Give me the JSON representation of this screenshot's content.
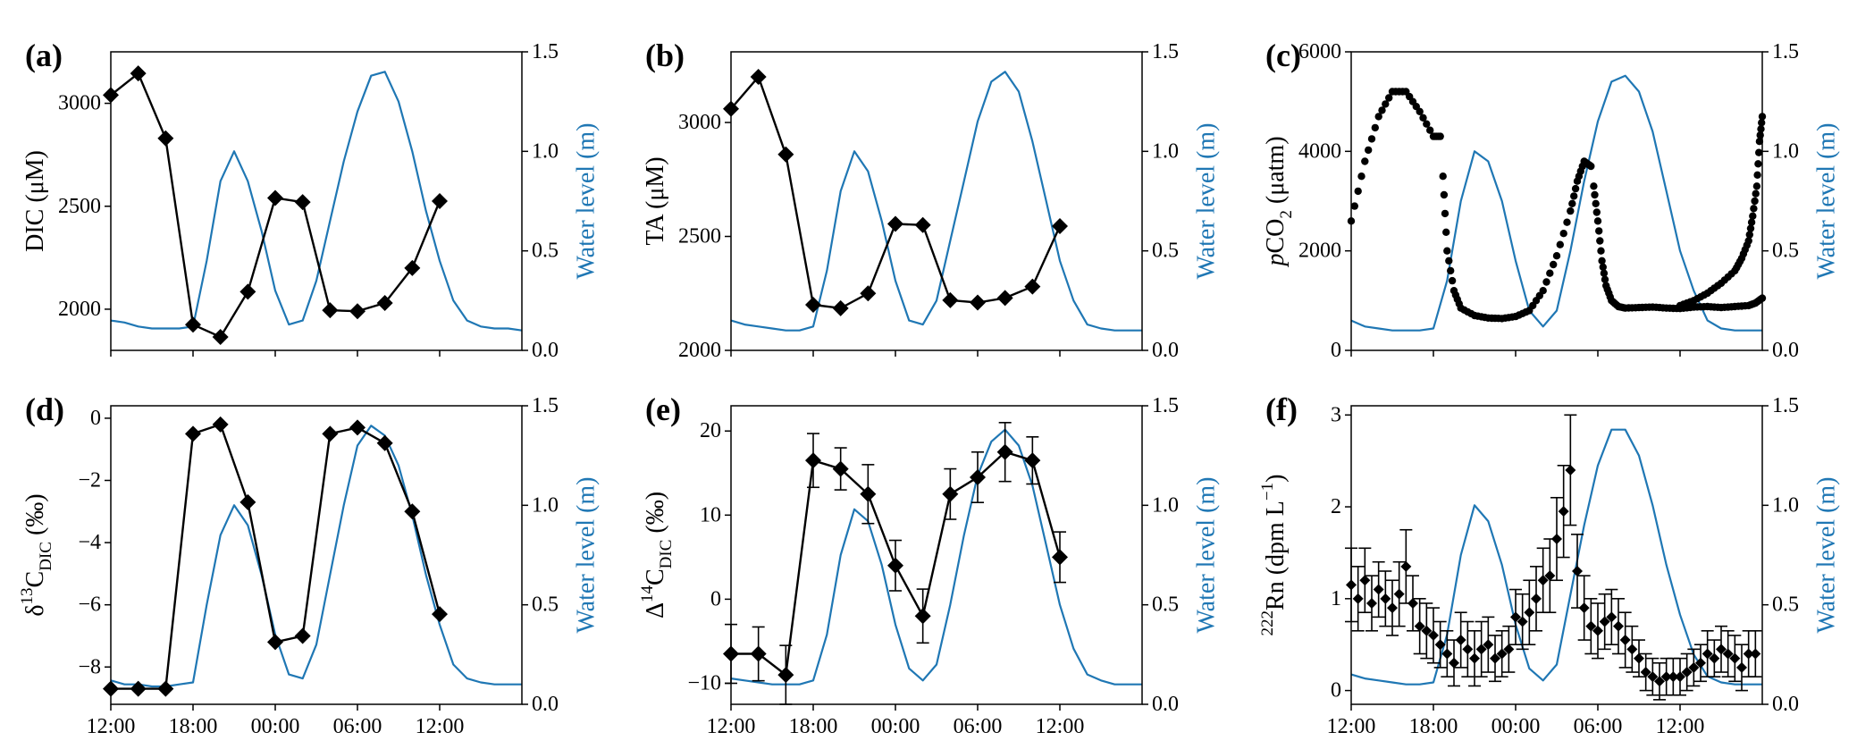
{
  "figure": {
    "water_level_label": "Water level (m)",
    "water_color": "#1f77b4",
    "data_color": "#000000"
  },
  "chart_data": [
    {
      "type": "line",
      "panel_label": "(a)",
      "ylabel": "DIC (μM)",
      "ylabel_parts": [
        {
          "t": "DIC (μM)"
        }
      ],
      "xlabel": "",
      "ylim": [
        1800,
        3250
      ],
      "yticks": [
        2000,
        2500,
        3000
      ],
      "y2label": "Water level (m)",
      "y2lim": [
        0,
        1.5
      ],
      "y2ticks": [
        "0.0",
        "0.5",
        "1.0",
        "1.5"
      ],
      "xlim": [
        0,
        30
      ],
      "xticks": [
        0,
        6,
        12,
        18,
        24
      ],
      "xtick_labels": [],
      "marker": "D",
      "series": [
        {
          "name": "DIC",
          "x": [
            0,
            2,
            4,
            6,
            8,
            10,
            12,
            14,
            16,
            18,
            20,
            22,
            24,
            26
          ],
          "values": [
            3040,
            3145,
            2830,
            1925,
            1865,
            2085,
            2540,
            2520,
            1995,
            1990,
            2030,
            2200,
            2525,
            null
          ]
        }
      ]
    },
    {
      "type": "line",
      "panel_label": "(b)",
      "ylabel": "TA (μM)",
      "ylabel_parts": [
        {
          "t": "TA (μM)"
        }
      ],
      "xlabel": "",
      "ylim": [
        2000,
        3310
      ],
      "yticks": [
        2000,
        2500,
        3000
      ],
      "y2label": "Water level (m)",
      "y2lim": [
        0,
        1.5
      ],
      "y2ticks": [
        "0.0",
        "0.5",
        "1.0",
        "1.5"
      ],
      "xlim": [
        0,
        30
      ],
      "xticks": [
        0,
        6,
        12,
        18,
        24
      ],
      "xtick_labels": [],
      "marker": "D",
      "series": [
        {
          "name": "TA",
          "x": [
            0,
            2,
            4,
            6,
            8,
            10,
            12,
            14,
            16,
            18,
            20,
            22,
            24
          ],
          "values": [
            3060,
            3200,
            2860,
            2200,
            2185,
            2250,
            2555,
            2550,
            2220,
            2210,
            2230,
            2280,
            2545
          ]
        }
      ]
    },
    {
      "type": "scatter",
      "panel_label": "(c)",
      "ylabel": "pCO2 (μatm)",
      "ylabel_parts": [
        {
          "t": "p",
          "i": true
        },
        {
          "t": "CO"
        },
        {
          "t": "2",
          "sub": true
        },
        {
          "t": " (μatm)"
        }
      ],
      "xlabel": "",
      "ylim": [
        0,
        6000
      ],
      "yticks": [
        0,
        2000,
        4000,
        6000
      ],
      "y2label": "Water level (m)",
      "y2lim": [
        0,
        1.5
      ],
      "y2ticks": [
        "0.0",
        "0.5",
        "1.0",
        "1.5"
      ],
      "xlim": [
        0,
        30
      ],
      "xticks": [
        0,
        6,
        12,
        18,
        24
      ],
      "xtick_labels": [],
      "marker": "o",
      "pco2_segments": [
        {
          "x": [
            0,
            1,
            2,
            3,
            4,
            5,
            6,
            6.5
          ],
          "values": [
            2600,
            3800,
            4700,
            5200,
            5200,
            4800,
            4300,
            4300
          ]
        },
        {
          "x": [
            6.7,
            7,
            7.5,
            8,
            9,
            10,
            11,
            12,
            13,
            14,
            15,
            16,
            16.5,
            17,
            17.5
          ],
          "values": [
            3500,
            2000,
            1200,
            850,
            700,
            650,
            640,
            680,
            800,
            1200,
            1900,
            2800,
            3400,
            3800,
            3700
          ]
        },
        {
          "x": [
            17.7,
            18,
            18.3,
            18.6,
            19,
            19.5,
            20,
            21,
            22,
            23,
            24,
            25,
            26,
            27,
            28,
            29,
            29.5,
            30
          ],
          "values": [
            3300,
            2600,
            1800,
            1300,
            1000,
            880,
            850,
            860,
            870,
            850,
            840,
            870,
            880,
            860,
            880,
            900,
            950,
            1050
          ]
        }
      ],
      "pco2_tail": {
        "x": [
          24,
          25,
          26,
          27,
          28,
          28.5,
          29,
          29.3,
          29.6,
          29.8,
          30
        ],
        "values": [
          900,
          1000,
          1150,
          1350,
          1600,
          1850,
          2200,
          2700,
          3300,
          4200,
          4700
        ]
      }
    },
    {
      "type": "line",
      "panel_label": "(d)",
      "ylabel": "δ13C_DIC (‰)",
      "ylabel_parts": [
        {
          "t": "δ"
        },
        {
          "t": "13",
          "sup": true
        },
        {
          "t": "C"
        },
        {
          "t": "DIC",
          "sub": true
        },
        {
          "t": " (‰)"
        }
      ],
      "xlabel": "",
      "ylim": [
        -9.2,
        0.4
      ],
      "yticks": [
        -8,
        -6,
        -4,
        -2,
        0
      ],
      "y2label": "Water level (m)",
      "y2lim": [
        0,
        1.5
      ],
      "y2ticks": [
        "0.0",
        "0.5",
        "1.0",
        "1.5"
      ],
      "xlim": [
        0,
        30
      ],
      "xticks": [
        0,
        6,
        12,
        18,
        24
      ],
      "xtick_labels": [
        "12:00",
        "18:00",
        "00:00",
        "06:00",
        "12:00"
      ],
      "marker": "D",
      "series": [
        {
          "name": "d13C",
          "x": [
            0,
            2,
            4,
            6,
            8,
            10,
            12,
            14,
            16,
            18,
            20,
            22,
            24
          ],
          "values": [
            -8.7,
            -8.7,
            -8.7,
            -0.5,
            -0.2,
            -2.7,
            -7.2,
            -7.0,
            -0.5,
            -0.3,
            -0.8,
            -3.0,
            -6.3
          ]
        }
      ]
    },
    {
      "type": "line",
      "panel_label": "(e)",
      "ylabel": "Δ14C_DIC (‰)",
      "ylabel_parts": [
        {
          "t": "Δ"
        },
        {
          "t": "14",
          "sup": true
        },
        {
          "t": "C"
        },
        {
          "t": "DIC",
          "sub": true
        },
        {
          "t": " (‰)"
        }
      ],
      "xlabel": "",
      "ylim": [
        -12.5,
        23
      ],
      "yticks": [
        -10,
        0,
        10,
        20
      ],
      "y2label": "Water level (m)",
      "y2lim": [
        0,
        1.5
      ],
      "y2ticks": [
        "0.0",
        "0.5",
        "1.0",
        "1.5"
      ],
      "xlim": [
        0,
        30
      ],
      "xticks": [
        0,
        6,
        12,
        18,
        24
      ],
      "xtick_labels": [
        "12:00",
        "18:00",
        "00:00",
        "06:00",
        "12:00"
      ],
      "marker": "D",
      "series": [
        {
          "name": "D14C",
          "x": [
            0,
            2,
            4,
            6,
            8,
            10,
            12,
            14,
            16,
            18,
            20,
            22,
            24
          ],
          "values": [
            -6.5,
            -6.5,
            -9.0,
            16.5,
            15.5,
            12.5,
            4.0,
            -2.0,
            12.5,
            14.5,
            17.5,
            16.5,
            5.0
          ],
          "errors": [
            3.5,
            3.2,
            3.5,
            3.2,
            2.5,
            3.5,
            3.0,
            3.2,
            3.0,
            3.0,
            3.5,
            2.8,
            3.0
          ]
        }
      ]
    },
    {
      "type": "scatter",
      "panel_label": "(f)",
      "ylabel": "222Rn (dpm L−1)",
      "ylabel_parts": [
        {
          "t": "222",
          "sup": true
        },
        {
          "t": "Rn (dpm L"
        },
        {
          "t": "−1",
          "sup": true
        },
        {
          "t": ")"
        }
      ],
      "xlabel": "",
      "ylim": [
        -0.15,
        3.1
      ],
      "yticks": [
        0,
        1,
        2,
        3
      ],
      "y2label": "Water level (m)",
      "y2lim": [
        0,
        1.5
      ],
      "y2ticks": [
        "0.0",
        "0.5",
        "1.0",
        "1.5"
      ],
      "xlim": [
        0,
        30
      ],
      "xticks": [
        0,
        6,
        12,
        18,
        24
      ],
      "xtick_labels": [
        "12:00",
        "18:00",
        "00:00",
        "06:00",
        "12:00"
      ],
      "marker": "D",
      "series": [
        {
          "name": "Rn",
          "x": [
            0,
            0.5,
            1,
            1.5,
            2,
            2.5,
            3,
            3.5,
            4,
            4.5,
            5,
            5.5,
            6,
            6.5,
            7,
            7.5,
            8,
            8.5,
            9,
            9.5,
            10,
            10.5,
            11,
            11.5,
            12,
            12.5,
            13,
            13.5,
            14,
            14.5,
            15,
            15.5,
            16,
            16.5,
            17,
            17.5,
            18,
            18.5,
            19,
            19.5,
            20,
            20.5,
            21,
            21.5,
            22,
            22.5,
            23,
            23.5,
            24,
            24.5,
            25,
            25.5,
            26,
            26.5,
            27,
            27.5,
            28,
            28.5,
            29,
            29.5
          ],
          "values": [
            1.15,
            1.0,
            1.2,
            0.95,
            1.1,
            1.0,
            0.9,
            1.05,
            1.35,
            0.95,
            0.7,
            0.65,
            0.6,
            0.5,
            0.4,
            0.3,
            0.55,
            0.45,
            0.35,
            0.45,
            0.5,
            0.35,
            0.4,
            0.45,
            0.8,
            0.75,
            0.85,
            1.0,
            1.2,
            1.25,
            1.65,
            1.95,
            2.4,
            1.3,
            0.9,
            0.7,
            0.65,
            0.75,
            0.8,
            0.7,
            0.55,
            0.45,
            0.35,
            0.2,
            0.15,
            0.1,
            0.15,
            0.15,
            0.15,
            0.2,
            0.25,
            0.3,
            0.4,
            0.35,
            0.45,
            0.4,
            0.35,
            0.25,
            0.4,
            0.4
          ],
          "errors": [
            0.4,
            0.35,
            0.35,
            0.3,
            0.3,
            0.3,
            0.3,
            0.35,
            0.4,
            0.3,
            0.3,
            0.3,
            0.3,
            0.25,
            0.25,
            0.25,
            0.3,
            0.3,
            0.3,
            0.3,
            0.3,
            0.25,
            0.25,
            0.25,
            0.3,
            0.3,
            0.35,
            0.35,
            0.35,
            0.4,
            0.45,
            0.5,
            0.6,
            0.4,
            0.35,
            0.3,
            0.3,
            0.3,
            0.3,
            0.3,
            0.3,
            0.25,
            0.2,
            0.2,
            0.2,
            0.2,
            0.2,
            0.2,
            0.2,
            0.2,
            0.2,
            0.2,
            0.25,
            0.2,
            0.25,
            0.25,
            0.25,
            0.25,
            0.25,
            0.25
          ]
        }
      ]
    }
  ],
  "water_level": {
    "x": [
      0,
      1,
      2,
      3,
      4,
      5,
      6,
      7,
      8,
      9,
      10,
      11,
      12,
      13,
      14,
      15,
      16,
      17,
      18,
      19,
      20,
      21,
      22,
      23,
      24,
      25,
      26,
      27,
      28,
      29,
      30
    ],
    "a": [
      0.15,
      0.14,
      0.12,
      0.11,
      0.11,
      0.11,
      0.12,
      0.45,
      0.85,
      1.0,
      0.85,
      0.6,
      0.3,
      0.13,
      0.15,
      0.35,
      0.65,
      0.95,
      1.2,
      1.38,
      1.4,
      1.25,
      1.0,
      0.7,
      0.45,
      0.25,
      0.15,
      0.12,
      0.11,
      0.11,
      0.1
    ],
    "b": [
      0.15,
      0.13,
      0.12,
      0.11,
      0.1,
      0.1,
      0.12,
      0.4,
      0.8,
      1.0,
      0.9,
      0.65,
      0.35,
      0.15,
      0.13,
      0.25,
      0.55,
      0.85,
      1.15,
      1.35,
      1.4,
      1.3,
      1.05,
      0.75,
      0.45,
      0.25,
      0.13,
      0.11,
      0.1,
      0.1,
      0.1
    ],
    "c": [
      0.15,
      0.12,
      0.11,
      0.1,
      0.1,
      0.1,
      0.11,
      0.35,
      0.75,
      1.0,
      0.95,
      0.75,
      0.45,
      0.2,
      0.12,
      0.2,
      0.5,
      0.85,
      1.15,
      1.35,
      1.38,
      1.3,
      1.1,
      0.8,
      0.5,
      0.3,
      0.15,
      0.11,
      0.1,
      0.1,
      0.1
    ],
    "d": [
      0.12,
      0.1,
      0.1,
      0.09,
      0.09,
      0.1,
      0.11,
      0.5,
      0.85,
      1.0,
      0.9,
      0.65,
      0.35,
      0.15,
      0.13,
      0.3,
      0.65,
      1.0,
      1.3,
      1.4,
      1.35,
      1.2,
      0.95,
      0.65,
      0.4,
      0.2,
      0.13,
      0.11,
      0.1,
      0.1,
      0.1
    ],
    "e": [
      0.13,
      0.12,
      0.11,
      0.1,
      0.1,
      0.1,
      0.12,
      0.35,
      0.75,
      0.98,
      0.92,
      0.7,
      0.4,
      0.18,
      0.12,
      0.2,
      0.5,
      0.85,
      1.15,
      1.32,
      1.38,
      1.3,
      1.1,
      0.8,
      0.5,
      0.28,
      0.15,
      0.12,
      0.1,
      0.1,
      0.1
    ],
    "f": [
      0.15,
      0.13,
      0.12,
      0.11,
      0.1,
      0.1,
      0.11,
      0.35,
      0.75,
      1.0,
      0.92,
      0.7,
      0.4,
      0.18,
      0.12,
      0.2,
      0.55,
      0.9,
      1.2,
      1.38,
      1.38,
      1.25,
      1.0,
      0.7,
      0.45,
      0.25,
      0.14,
      0.11,
      0.1,
      0.1,
      0.1
    ]
  }
}
